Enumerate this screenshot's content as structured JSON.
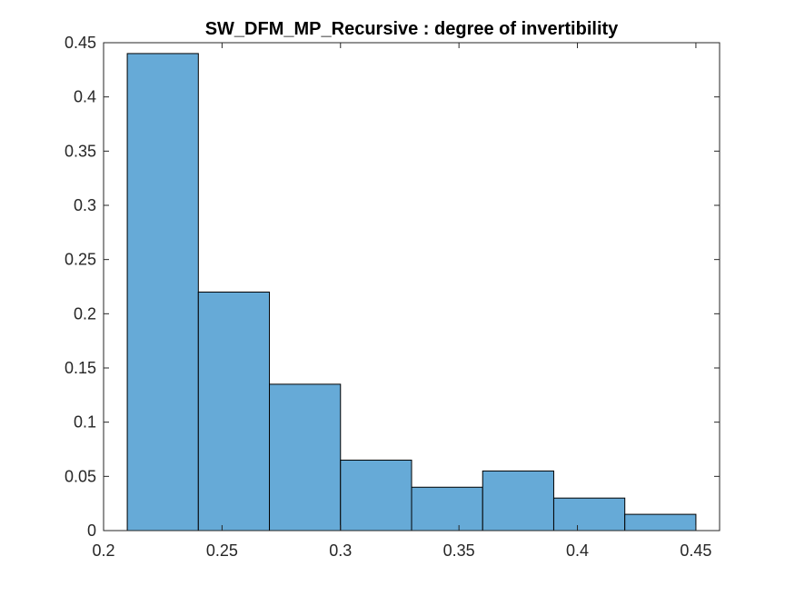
{
  "chart_data": {
    "type": "bar",
    "title": "SW_DFM_MP_Recursive : degree of invertibility",
    "xlabel": "",
    "ylabel": "",
    "bin_edges": [
      0.21,
      0.24,
      0.27,
      0.3,
      0.33,
      0.36,
      0.39,
      0.42,
      0.45
    ],
    "values": [
      0.44,
      0.22,
      0.135,
      0.065,
      0.04,
      0.055,
      0.03,
      0.015
    ],
    "xlim": [
      0.2,
      0.46
    ],
    "ylim": [
      0,
      0.45
    ],
    "xticks": [
      0.2,
      0.25,
      0.3,
      0.35,
      0.4,
      0.45
    ],
    "xtick_labels": [
      "0.2",
      "0.25",
      "0.3",
      "0.35",
      "0.4",
      "0.45"
    ],
    "yticks": [
      0,
      0.05,
      0.1,
      0.15,
      0.2,
      0.25,
      0.3,
      0.35,
      0.4,
      0.45
    ],
    "ytick_labels": [
      "0",
      "0.05",
      "0.1",
      "0.15",
      "0.2",
      "0.25",
      "0.3",
      "0.35",
      "0.4",
      "0.45"
    ],
    "grid": false,
    "bar_color": "#66aad7",
    "edge_color": "#000000"
  }
}
